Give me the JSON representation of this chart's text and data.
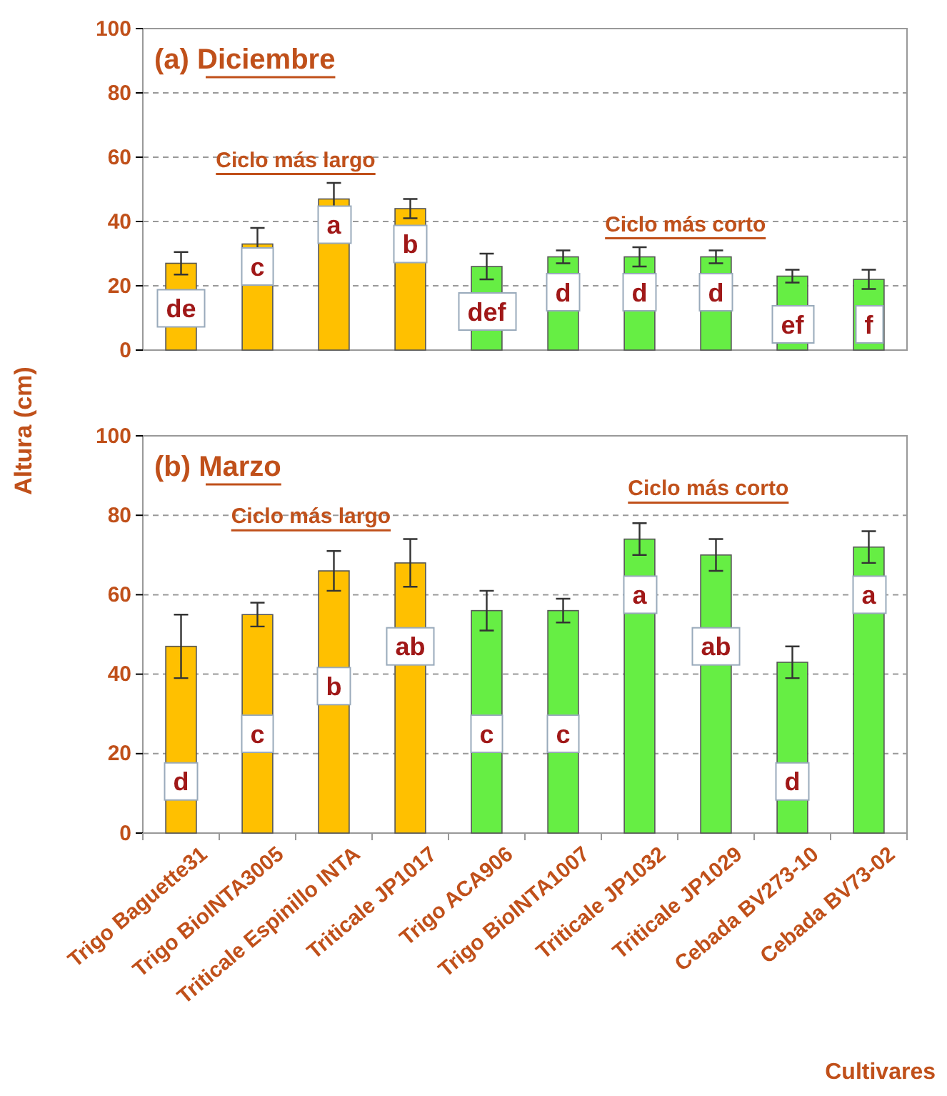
{
  "chart_data": [
    {
      "type": "bar",
      "title": "(a) Diciembre",
      "ylabel": "Altura (cm)",
      "categories": [
        null,
        null,
        null,
        null,
        null,
        null,
        null,
        null,
        null,
        null
      ],
      "values": [
        27,
        33,
        47,
        44,
        26,
        29,
        29,
        29,
        23,
        22
      ],
      "errors": [
        3.5,
        5,
        5,
        3,
        4,
        2,
        3,
        2,
        2,
        3
      ],
      "colors": [
        "#ffc000",
        "#ffc000",
        "#ffc000",
        "#ffc000",
        "#66ee44",
        "#66ee44",
        "#66ee44",
        "#66ee44",
        "#66ee44",
        "#66ee44"
      ],
      "ylim": [
        0,
        100
      ],
      "yticks": [
        0,
        20,
        40,
        60,
        80,
        100
      ],
      "grid": "y",
      "tick_labels": "y",
      "annotations": [
        "Ciclo más largo",
        "Ciclo más corto",
        "de",
        "c",
        "a",
        "b",
        "def",
        "d",
        "d",
        "d",
        "ef",
        "f"
      ]
    },
    {
      "type": "bar",
      "title": "(b) Marzo",
      "xlabel": "Cultivares",
      "categories": [
        "Trigo Baguette31",
        "Trigo BioINTA3005",
        "Triticale Espinillo INTA",
        "Triticale JP1017",
        "Trigo ACA906",
        "Trigo BioINTA1007",
        "Triticale JP1032",
        "Triticale JP1029",
        "Cebada BV273-10",
        "Cebada BV73-02"
      ],
      "values": [
        47,
        55,
        66,
        68,
        56,
        56,
        74,
        70,
        43,
        72
      ],
      "errors": [
        8,
        3,
        5,
        6,
        5,
        3,
        4,
        4,
        4,
        4
      ],
      "colors": [
        "#ffc000",
        "#ffc000",
        "#ffc000",
        "#ffc000",
        "#66ee44",
        "#66ee44",
        "#66ee44",
        "#66ee44",
        "#66ee44",
        "#66ee44"
      ],
      "ylim": [
        0,
        100
      ],
      "yticks": [
        0,
        20,
        40,
        60,
        80,
        100
      ],
      "grid": "y",
      "annotations": [
        "Ciclo más largo",
        "Ciclo más corto",
        "d",
        "c",
        "b",
        "ab",
        "c",
        "c",
        "a",
        "ab",
        "d",
        "a"
      ]
    }
  ]
}
